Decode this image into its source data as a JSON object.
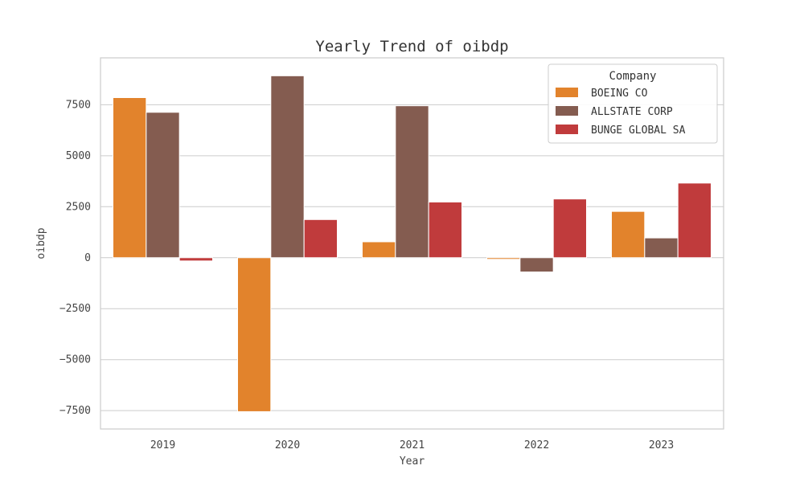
{
  "chart_data": {
    "type": "bar",
    "title": "Yearly Trend of oibdp",
    "xlabel": "Year",
    "ylabel": "oibdp",
    "categories": [
      "2019",
      "2020",
      "2021",
      "2022",
      "2023"
    ],
    "series": [
      {
        "name": "BOEING CO",
        "color": "#e2832c",
        "values": [
          7850,
          -7550,
          780,
          -80,
          2270
        ]
      },
      {
        "name": "ALLSTATE CORP",
        "color": "#845c50",
        "values": [
          7130,
          8920,
          7450,
          -700,
          970
        ]
      },
      {
        "name": "BUNGE GLOBAL SA",
        "color": "#c03b3c",
        "values": [
          -160,
          1870,
          2730,
          2880,
          3660
        ]
      }
    ],
    "ylim": [
      -8400,
      9800
    ],
    "yticks": [
      -7500,
      -5000,
      -2500,
      0,
      2500,
      5000,
      7500
    ],
    "ytick_labels": [
      "−7500",
      "−5000",
      "−2500",
      "0",
      "2500",
      "5000",
      "7500"
    ],
    "legend": {
      "title": "Company",
      "position": "top-right"
    },
    "grid": true
  }
}
